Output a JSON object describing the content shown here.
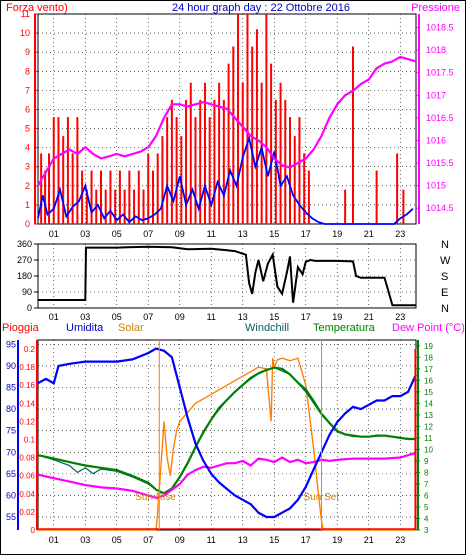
{
  "header": {
    "left_label": "Forza vento)",
    "title": "24 hour graph day : 22 Ottobre 2016",
    "right_label": "Pressione"
  },
  "middle": {
    "directions": [
      "N",
      "W",
      "S",
      "E",
      "N"
    ]
  },
  "bottom_header": {
    "pioggia": "Pioggia",
    "umidita": "Umidita",
    "solar": "Solar",
    "windchill": "Windchill",
    "temperatura": "Temperatura",
    "dewpoint": "Dew Point (°C)"
  },
  "annotations": {
    "sunrise": "Sun Rise",
    "sunset": "Sun Set"
  },
  "colors": {
    "wind_bars": "#ff0000",
    "wind_speed": "#0000ff",
    "pressure": "#ff00ff",
    "direction": "#000000",
    "humidity": "#0000ff",
    "solar": "#ff8000",
    "temperature": "#008000",
    "dewpoint": "#ff00ff",
    "windchill": "#006060",
    "rain": "#ff0000",
    "grid": "#000000",
    "label_left": "#ff0000",
    "label_title": "#0000c0",
    "label_right": "#ff00ff"
  },
  "chart_data": [
    {
      "type": "bar",
      "name": "wind",
      "x_ticks": [
        "01",
        "03",
        "05",
        "07",
        "09",
        "11",
        "13",
        "15",
        "17",
        "19",
        "21",
        "23"
      ],
      "y_left_ticks": [
        0,
        1,
        2,
        3,
        4,
        5,
        6,
        7,
        8,
        9,
        10,
        11
      ],
      "y_left_range": [
        0,
        11
      ],
      "y_right_ticks": [
        1014.5,
        1015,
        1015.5,
        1016,
        1016.5,
        1017,
        1017.5,
        1018,
        1018.5
      ],
      "y_right_range": [
        1014.15,
        1018.8
      ],
      "x_range": [
        0,
        24
      ],
      "gust_x": [
        0.2,
        0.45,
        0.7,
        1.0,
        1.3,
        1.6,
        1.9,
        2.2,
        2.5,
        2.8,
        3.1,
        3.4,
        3.7,
        4.0,
        4.3,
        4.6,
        4.9,
        5.2,
        5.5,
        5.8,
        6.1,
        6.4,
        6.7,
        7.0,
        7.3,
        7.6,
        7.9,
        8.2,
        8.5,
        8.8,
        9.1,
        9.4,
        9.7,
        10.0,
        10.3,
        10.6,
        10.9,
        11.2,
        11.5,
        11.8,
        12.1,
        12.4,
        12.7,
        13.0,
        13.3,
        13.6,
        13.9,
        14.2,
        14.5,
        14.8,
        15.1,
        15.4,
        15.7,
        16.0,
        16.3,
        16.6,
        16.9,
        17.2,
        19.5,
        20.0,
        21.5,
        22.8,
        23.2
      ],
      "gust_y": [
        3.7,
        2.8,
        3.7,
        5.6,
        5.6,
        4.6,
        5.6,
        3.7,
        5.6,
        2.8,
        1.8,
        2.8,
        1.8,
        2.8,
        1.8,
        2.8,
        1.8,
        2.8,
        1.8,
        2.8,
        1.8,
        2.8,
        1.8,
        3.7,
        2.8,
        3.7,
        4.6,
        5.6,
        6.5,
        5.6,
        4.6,
        6.5,
        7.4,
        5.6,
        6.5,
        7.4,
        5.6,
        6.5,
        7.4,
        6.5,
        8.4,
        9.3,
        11.0,
        7.4,
        11.0,
        9.3,
        10.2,
        7.4,
        11.0,
        8.4,
        6.5,
        7.4,
        6.5,
        5.6,
        4.6,
        5.6,
        3.7,
        2.8,
        1.8,
        9.3,
        2.8,
        3.7,
        1.8
      ],
      "series": [
        {
          "name": "wind speed",
          "x": [
            0,
            0.3,
            0.6,
            1.0,
            1.4,
            1.8,
            2.2,
            2.6,
            3.0,
            3.4,
            3.8,
            4.2,
            4.6,
            5.0,
            5.4,
            5.8,
            6.2,
            6.6,
            7.0,
            7.4,
            7.8,
            8.2,
            8.6,
            9.0,
            9.4,
            9.8,
            10.2,
            10.6,
            11.0,
            11.4,
            11.8,
            12.2,
            12.6,
            13.0,
            13.4,
            13.8,
            14.2,
            14.6,
            15.0,
            15.4,
            15.8,
            16.2,
            16.6,
            17.0,
            17.4,
            17.8,
            18.2,
            18.6,
            19.0,
            19.4,
            19.8,
            20.2,
            20.6,
            21.0,
            21.4,
            21.8,
            22.2,
            22.6,
            23.0,
            23.4,
            23.8
          ],
          "y": [
            0.3,
            1.5,
            0.5,
            0.8,
            1.8,
            0.4,
            0.9,
            1.2,
            2.0,
            0.6,
            1.0,
            0.3,
            0.7,
            0.2,
            0.5,
            0.1,
            0.4,
            0.2,
            0.3,
            0.5,
            0.8,
            2.0,
            1.2,
            2.5,
            1.0,
            1.8,
            0.8,
            2.0,
            1.0,
            2.2,
            1.5,
            2.8,
            2.0,
            3.5,
            4.5,
            3.0,
            4.0,
            2.5,
            3.8,
            2.0,
            2.5,
            1.5,
            1.0,
            0.6,
            0.3,
            0.1,
            0,
            0,
            0,
            0,
            0,
            0,
            0,
            0,
            0,
            0,
            0,
            0,
            0.3,
            0.5,
            0.8
          ]
        },
        {
          "name": "pressure",
          "x": [
            0,
            0.5,
            1.0,
            1.5,
            2.0,
            2.5,
            3.0,
            3.5,
            4.0,
            4.5,
            5.0,
            5.5,
            6.0,
            6.5,
            7.0,
            7.5,
            8.0,
            8.5,
            9.0,
            9.5,
            10.0,
            10.5,
            11.0,
            11.5,
            12.0,
            12.5,
            13.0,
            13.5,
            14.0,
            14.5,
            15.0,
            15.5,
            16.0,
            16.5,
            17.0,
            17.5,
            18.0,
            18.5,
            19.0,
            19.5,
            20.0,
            20.5,
            21.0,
            21.5,
            22.0,
            22.5,
            23.0,
            23.5,
            24.0
          ],
          "y": [
            1015.0,
            1015.3,
            1015.6,
            1015.7,
            1015.8,
            1015.7,
            1015.85,
            1015.7,
            1015.6,
            1015.65,
            1015.7,
            1015.65,
            1015.7,
            1015.75,
            1015.85,
            1016.1,
            1016.5,
            1016.8,
            1016.8,
            1016.75,
            1016.8,
            1016.85,
            1016.8,
            1016.75,
            1016.7,
            1016.5,
            1016.3,
            1016.1,
            1016.0,
            1015.85,
            1015.6,
            1015.45,
            1015.4,
            1015.5,
            1015.6,
            1015.8,
            1016.1,
            1016.5,
            1016.8,
            1017.0,
            1017.1,
            1017.25,
            1017.35,
            1017.6,
            1017.7,
            1017.75,
            1017.85,
            1017.8,
            1017.75
          ]
        }
      ]
    },
    {
      "type": "line",
      "name": "wind direction",
      "x_ticks": [
        "01",
        "03",
        "05",
        "07",
        "09",
        "11",
        "13",
        "15",
        "17",
        "19",
        "21",
        "23"
      ],
      "y_ticks": [
        0,
        90,
        180,
        270,
        360
      ],
      "y_range": [
        0,
        360
      ],
      "x_range": [
        0,
        24
      ],
      "series": [
        {
          "name": "direction",
          "x": [
            0,
            3.0,
            3.05,
            5,
            7,
            8.5,
            9.5,
            11,
            12,
            12.5,
            13.2,
            13.4,
            13.6,
            13.8,
            14.0,
            14.3,
            14.6,
            14.9,
            15.2,
            15.5,
            15.8,
            16.0,
            16.2,
            16.5,
            16.8,
            17.0,
            17.3,
            17.6,
            18,
            19,
            20,
            20.2,
            20.5,
            22,
            22.2,
            22.5,
            24
          ],
          "y": [
            45,
            45,
            340,
            340,
            345,
            342,
            330,
            333,
            325,
            320,
            300,
            140,
            80,
            200,
            270,
            150,
            250,
            300,
            120,
            80,
            200,
            290,
            30,
            230,
            190,
            260,
            270,
            265,
            265,
            265,
            262,
            180,
            170,
            170,
            110,
            15,
            15
          ]
        }
      ]
    },
    {
      "type": "line",
      "name": "weather",
      "x_ticks": [
        "01",
        "03",
        "05",
        "07",
        "09",
        "11",
        "13",
        "15",
        "17",
        "19",
        "21",
        "23"
      ],
      "x_range": [
        0,
        24
      ],
      "y_humidity_ticks": [
        55,
        60,
        65,
        70,
        75,
        80,
        85,
        90,
        95
      ],
      "y_humidity_range": [
        52,
        96
      ],
      "y_rain_ticks": [
        0,
        0.02,
        0.04,
        0.06,
        0.08,
        0.1,
        0.12,
        0.14,
        0.16,
        0.18,
        0.2
      ],
      "y_rain_range": [
        0,
        0.21
      ],
      "y_temp_ticks": [
        3,
        4,
        5,
        6,
        7,
        8,
        9,
        10,
        11,
        12,
        13,
        14,
        15,
        16,
        17,
        18,
        19
      ],
      "y_temp_range": [
        3,
        19.5
      ],
      "series": [
        {
          "name": "humidity",
          "x": [
            0,
            0.5,
            1.0,
            1.3,
            2.0,
            3.0,
            4.0,
            5.0,
            6.0,
            7.0,
            7.5,
            8.0,
            8.5,
            9.0,
            9.5,
            10.0,
            10.5,
            11.0,
            11.5,
            12.0,
            12.5,
            13.0,
            13.5,
            14.0,
            14.5,
            15.0,
            15.5,
            16.0,
            16.5,
            17.0,
            17.5,
            18.0,
            18.5,
            19.0,
            19.5,
            20.0,
            20.5,
            21.0,
            21.5,
            22.0,
            22.5,
            23.0,
            23.5,
            24.0
          ],
          "y": [
            86,
            87,
            86,
            90,
            90.5,
            91,
            91,
            91,
            91.5,
            93,
            94,
            93.5,
            92,
            85,
            78,
            72,
            68,
            65,
            63,
            61.5,
            60,
            59,
            58,
            56,
            55,
            55,
            56,
            57,
            59,
            62,
            66,
            70,
            74,
            77,
            79,
            80.5,
            80,
            81,
            82,
            82,
            83,
            83,
            84,
            88
          ]
        },
        {
          "name": "solar",
          "x": [
            0,
            7.5,
            7.6,
            7.8,
            8.0,
            8.2,
            8.4,
            8.6,
            8.8,
            9.0,
            9.5,
            10.0,
            10.5,
            11.0,
            11.5,
            12.0,
            12.5,
            13.0,
            13.5,
            14.0,
            14.5,
            14.8,
            14.9,
            15.0,
            15.2,
            15.5,
            16.0,
            16.5,
            17.0,
            17.5,
            17.8,
            18.0,
            18.1,
            24
          ],
          "y": [
            0,
            0,
            0.02,
            0.07,
            0.12,
            0.08,
            0.06,
            0.09,
            0.11,
            0.12,
            0.13,
            0.14,
            0.145,
            0.15,
            0.155,
            0.16,
            0.165,
            0.17,
            0.175,
            0.18,
            0.178,
            0.12,
            0.19,
            0.18,
            0.188,
            0.19,
            0.187,
            0.19,
            0.16,
            0.09,
            0.04,
            0.01,
            0,
            0
          ]
        },
        {
          "name": "temperature",
          "x": [
            0,
            1.0,
            2.0,
            3.0,
            4.0,
            5.0,
            6.0,
            7.0,
            7.5,
            8.0,
            8.5,
            9.0,
            9.5,
            10.0,
            10.5,
            11.0,
            11.5,
            12.0,
            12.5,
            13.0,
            13.5,
            14.0,
            14.5,
            15.0,
            15.5,
            16.0,
            16.5,
            17.0,
            17.5,
            18.0,
            18.5,
            19.0,
            19.5,
            20.0,
            20.5,
            21.0,
            21.5,
            22.0,
            22.5,
            23.0,
            23.5,
            24.0
          ],
          "y": [
            9.5,
            9.2,
            8.9,
            8.6,
            8.4,
            8.2,
            7.7,
            7.1,
            6.5,
            6.2,
            6.6,
            7.6,
            8.8,
            10.2,
            11.5,
            12.6,
            13.6,
            14.3,
            15.0,
            15.6,
            16.2,
            16.6,
            16.9,
            17.1,
            17.0,
            16.5,
            15.8,
            15.2,
            14.2,
            13.1,
            12.3,
            11.6,
            11.3,
            11.2,
            11.1,
            11.1,
            11.2,
            11.2,
            11.1,
            11.0,
            10.9,
            10.9
          ]
        },
        {
          "name": "windchill",
          "x": [
            0,
            1.0,
            2.0,
            2.5,
            3.0,
            3.5,
            4.0,
            5.0,
            6.0,
            7.0,
            7.5,
            8.0,
            8.5,
            9.0,
            10.0,
            11.0,
            12.0,
            13.0,
            14.0,
            15.0,
            16.0,
            17.0,
            18.0,
            19.0,
            20.0,
            21.0,
            22.0,
            23.0,
            24.0
          ],
          "y": [
            9.5,
            9.1,
            8.6,
            8.0,
            8.4,
            7.9,
            8.3,
            8.1,
            7.6,
            7.0,
            6.5,
            6.2,
            6.6,
            7.6,
            10.2,
            12.6,
            14.3,
            15.6,
            16.6,
            17.1,
            16.5,
            15.0,
            13.0,
            11.5,
            11.1,
            11.1,
            11.2,
            11.0,
            10.9
          ]
        },
        {
          "name": "dew point",
          "x": [
            0,
            1.0,
            2.0,
            3.0,
            4.0,
            5.0,
            6.0,
            7.0,
            7.5,
            8.0,
            8.5,
            9.0,
            9.5,
            10.0,
            10.5,
            11.0,
            11.5,
            12.0,
            12.5,
            13.0,
            13.5,
            14.0,
            14.5,
            15.0,
            15.5,
            16.0,
            16.5,
            17.0,
            17.5,
            18.0,
            18.5,
            19.0,
            20.0,
            21.0,
            22.0,
            23.0,
            24.0
          ],
          "y": [
            7.8,
            7.5,
            7.2,
            6.9,
            6.7,
            6.6,
            6.4,
            6.0,
            5.8,
            6.0,
            6.5,
            7.0,
            7.8,
            8.2,
            8.5,
            8.4,
            8.6,
            8.8,
            8.8,
            9.0,
            8.6,
            9.2,
            9.1,
            8.9,
            9.3,
            8.9,
            9.1,
            8.8,
            8.9,
            9.1,
            9.0,
            9.1,
            9.2,
            9.2,
            9.2,
            9.3,
            9.7
          ]
        },
        {
          "name": "rain",
          "x": [
            23.9,
            24.0
          ],
          "y": [
            0.2,
            0.2
          ]
        }
      ],
      "sunrise_x": 7.7,
      "sunset_x": 18.0
    }
  ]
}
